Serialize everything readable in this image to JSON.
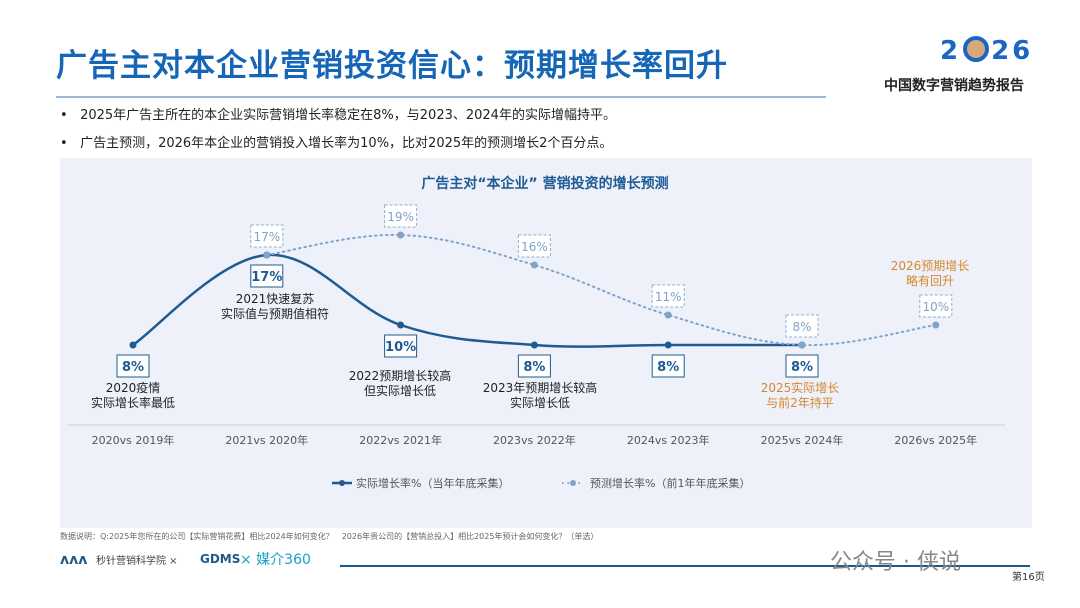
{
  "header": {
    "title": "广告主对本企业营销投资信心：预期增长率回升",
    "logo_year_prefix": "2",
    "logo_year_suffix": "26",
    "logo_year": "2026",
    "subtitle": "中国数字营销趋势报告"
  },
  "bullets": [
    "2025年广告主所在的本企业实际营销增长率稳定在8%，与2023、2024年的实际增幅持平。",
    "广告主预测，2026年本企业的营销投入增长率为10%，比对2025年的预测增长2个百分点。"
  ],
  "chart_data": {
    "type": "line",
    "title": "广告主对“本企业” 营销投资的增长预测",
    "categories": [
      "2020vs 2019年",
      "2021vs 2020年",
      "2022vs 2021年",
      "2023vs 2022年",
      "2024vs 2023年",
      "2025vs 2024年",
      "2026vs 2025年"
    ],
    "series": [
      {
        "name": "实际增长率%（当年年底采集）",
        "values": [
          8,
          17,
          10,
          8,
          8,
          8,
          null
        ],
        "labels": [
          "8%",
          "17%",
          "10%",
          "8%",
          "8%",
          "8%",
          null
        ],
        "color": "#1e5b93",
        "style": "solid"
      },
      {
        "name": "预测增长率%（前1年年底采集）",
        "values": [
          null,
          17,
          19,
          16,
          11,
          8,
          10
        ],
        "labels": [
          null,
          "17%",
          "19%",
          "16%",
          "11%",
          "8%",
          "10%"
        ],
        "color": "#7fa3c9",
        "style": "dotted"
      }
    ],
    "annotations": [
      {
        "text": "2020疫情\n实际增长率最低",
        "color": "#222"
      },
      {
        "text": "2021快速复苏\n实际值与预期值相符",
        "color": "#222"
      },
      {
        "text": "2022预期增长较高\n但实际增长低",
        "color": "#222"
      },
      {
        "text": "2023年预期增长较高\n实际增长低",
        "color": "#222"
      },
      {
        "text": "2025实际增长\n与前2年持平",
        "color": "#d4892a"
      },
      {
        "text": "2026预期增长\n略有回升",
        "color": "#d4892a"
      }
    ],
    "ylim": [
      0,
      25
    ],
    "legend": "bottom"
  },
  "footer": {
    "note": "数据说明：Q:2025年您所在的公司【实际营销花费】相比2024年如何变化？　2026年贵公司的【营销总投入】相比2025年预计会如何变化？（单选）",
    "brand1": "秒针营销科学院 ×",
    "brand2": "GDMS",
    "brand3": "× 媒介360",
    "watermark": "公众号 · 侠说",
    "page": "第16页"
  }
}
